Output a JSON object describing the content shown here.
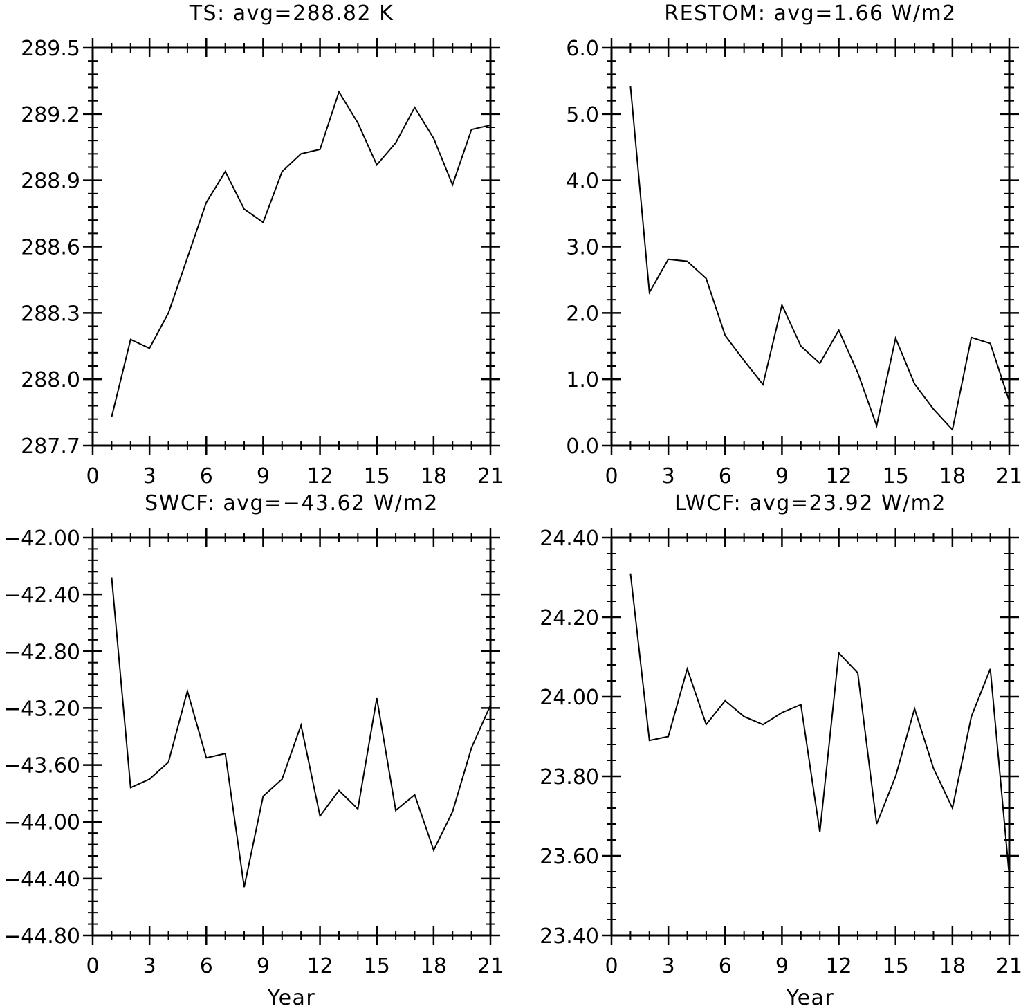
{
  "chart_data": [
    {
      "type": "line",
      "title": "TS: avg=288.82 K",
      "xlabel": "",
      "ylabel": "",
      "xlim": [
        0,
        21
      ],
      "ylim": [
        287.7,
        289.5
      ],
      "x_ticks": [
        0,
        3,
        6,
        9,
        12,
        15,
        18,
        21
      ],
      "x_tick_labels": [
        "0",
        "3",
        "6",
        "9",
        "12",
        "15",
        "18",
        "21"
      ],
      "y_ticks": [
        287.7,
        288.0,
        288.3,
        288.6,
        288.9,
        289.2,
        289.5
      ],
      "y_tick_labels": [
        "287.7",
        "288.0",
        "288.3",
        "288.6",
        "288.9",
        "289.2",
        "289.5"
      ],
      "grid": false,
      "x": [
        1,
        2,
        3,
        4,
        5,
        6,
        7,
        8,
        9,
        10,
        11,
        12,
        13,
        14,
        15,
        16,
        17,
        18,
        19,
        20,
        21
      ],
      "values": [
        287.83,
        288.18,
        288.14,
        288.3,
        288.55,
        288.8,
        288.94,
        288.77,
        288.71,
        288.94,
        289.02,
        289.04,
        289.3,
        289.16,
        288.97,
        289.07,
        289.23,
        289.09,
        288.88,
        289.13,
        289.15
      ]
    },
    {
      "type": "line",
      "title": "RESTOM: avg=1.66 W/m2",
      "xlabel": "",
      "ylabel": "",
      "xlim": [
        0,
        21
      ],
      "ylim": [
        0.0,
        6.0
      ],
      "x_ticks": [
        0,
        3,
        6,
        9,
        12,
        15,
        18,
        21
      ],
      "x_tick_labels": [
        "0",
        "3",
        "6",
        "9",
        "12",
        "15",
        "18",
        "21"
      ],
      "y_ticks": [
        0,
        1,
        2,
        3,
        4,
        5,
        6
      ],
      "y_tick_labels": [
        "0.0",
        "1.0",
        "2.0",
        "3.0",
        "4.0",
        "5.0",
        "6.0"
      ],
      "grid": false,
      "x": [
        1,
        2,
        3,
        4,
        5,
        6,
        7,
        8,
        9,
        10,
        11,
        12,
        13,
        14,
        15,
        16,
        17,
        18,
        19,
        20,
        21
      ],
      "values": [
        5.42,
        2.31,
        2.81,
        2.78,
        2.52,
        1.66,
        1.28,
        0.92,
        2.12,
        1.5,
        1.24,
        1.74,
        1.1,
        0.3,
        1.62,
        0.93,
        0.55,
        0.24,
        1.63,
        1.54,
        0.67
      ]
    },
    {
      "type": "line",
      "title": "SWCF: avg=−43.62 W/m2",
      "xlabel": "Year",
      "ylabel": "",
      "xlim": [
        0,
        21
      ],
      "ylim": [
        -44.8,
        -42.0
      ],
      "x_ticks": [
        0,
        3,
        6,
        9,
        12,
        15,
        18,
        21
      ],
      "x_tick_labels": [
        "0",
        "3",
        "6",
        "9",
        "12",
        "15",
        "18",
        "21"
      ],
      "y_ticks": [
        -44.8,
        -44.4,
        -44.0,
        -43.6,
        -43.2,
        -42.8,
        -42.4,
        -42.0
      ],
      "y_tick_labels": [
        "−44.80",
        "−44.40",
        "−44.00",
        "−43.60",
        "−43.20",
        "−42.80",
        "−42.40",
        "−42.00"
      ],
      "grid": false,
      "x": [
        1,
        2,
        3,
        4,
        5,
        6,
        7,
        8,
        9,
        10,
        11,
        12,
        13,
        14,
        15,
        16,
        17,
        18,
        19,
        20,
        21
      ],
      "values": [
        -42.28,
        -43.76,
        -43.7,
        -43.58,
        -43.08,
        -43.55,
        -43.52,
        -44.46,
        -43.82,
        -43.7,
        -43.32,
        -43.96,
        -43.78,
        -43.91,
        -43.13,
        -43.92,
        -43.81,
        -44.2,
        -43.93,
        -43.48,
        -43.18
      ]
    },
    {
      "type": "line",
      "title": "LWCF: avg=23.92 W/m2",
      "xlabel": "Year",
      "ylabel": "",
      "xlim": [
        0,
        21
      ],
      "ylim": [
        23.4,
        24.4
      ],
      "x_ticks": [
        0,
        3,
        6,
        9,
        12,
        15,
        18,
        21
      ],
      "x_tick_labels": [
        "0",
        "3",
        "6",
        "9",
        "12",
        "15",
        "18",
        "21"
      ],
      "y_ticks": [
        23.4,
        23.6,
        23.8,
        24.0,
        24.2,
        24.4
      ],
      "y_tick_labels": [
        "23.40",
        "23.60",
        "23.80",
        "24.00",
        "24.20",
        "24.40"
      ],
      "grid": false,
      "x": [
        1,
        2,
        3,
        4,
        5,
        6,
        7,
        8,
        9,
        10,
        11,
        12,
        13,
        14,
        15,
        16,
        17,
        18,
        19,
        20,
        21
      ],
      "values": [
        24.31,
        23.89,
        23.9,
        24.07,
        23.93,
        23.99,
        23.95,
        23.93,
        23.96,
        23.98,
        23.66,
        24.11,
        24.06,
        23.68,
        23.8,
        23.97,
        23.82,
        23.72,
        23.95,
        24.07,
        23.55
      ]
    }
  ]
}
